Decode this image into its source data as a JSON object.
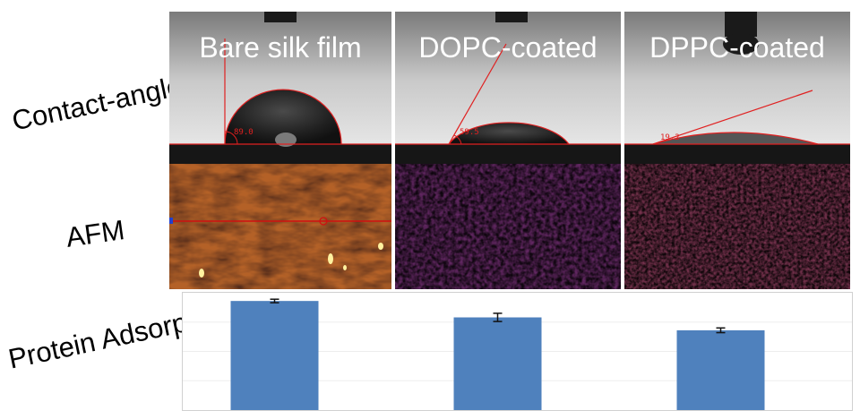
{
  "row_labels": {
    "contact_angle": "Contact-angle",
    "afm": "AFM",
    "protein": "Protein Adsorption"
  },
  "panels": [
    {
      "title": "Bare silk film",
      "angle_readout": "89.0"
    },
    {
      "title": "DOPC-coated",
      "angle_readout": "59.5"
    },
    {
      "title": "DPPC-coated",
      "angle_readout": "19.2"
    }
  ],
  "colors": {
    "bar": "#4f81bd",
    "trace": "#e02020",
    "afm_dark": "#5a1f5c",
    "afm_mid": "#c8701c",
    "afm_light": "#ffe46a"
  },
  "chart_data": {
    "type": "bar",
    "categories": [
      "Bare silk film",
      "DOPC-coated",
      "DPPC-coated"
    ],
    "values": [
      0.93,
      0.79,
      0.68
    ],
    "errors": [
      0.015,
      0.035,
      0.02
    ],
    "ylim": [
      0,
      1
    ],
    "grid": true,
    "xlabel": "",
    "ylabel": ""
  }
}
